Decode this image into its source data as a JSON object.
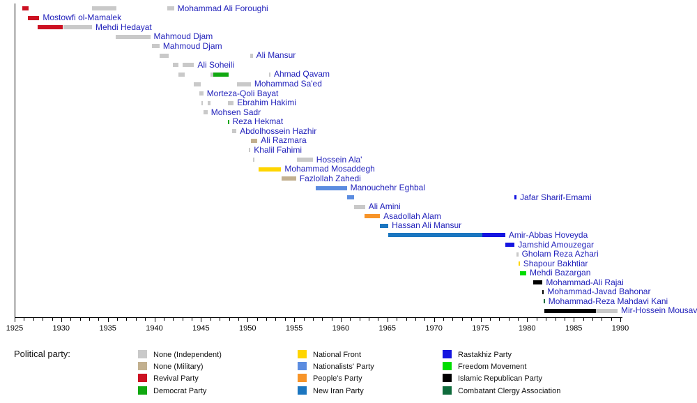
{
  "chart_data": {
    "type": "timeline-gantt",
    "title": "",
    "xlabel": "",
    "xlim": [
      1925,
      1990
    ],
    "tick_years": [
      1925,
      1930,
      1935,
      1940,
      1945,
      1950,
      1955,
      1960,
      1965,
      1970,
      1975,
      1980,
      1985,
      1990
    ],
    "minor_tick_step": 1,
    "grid": false,
    "legend_position": "bottom",
    "parties": {
      "ind": {
        "label": "None (Independent)",
        "color": "#c9c9c9"
      },
      "mil": {
        "label": "None (Military)",
        "color": "#c2b08f"
      },
      "revival": {
        "label": "Revival Party",
        "color": "#cc1122"
      },
      "democrat": {
        "label": "Democrat Party",
        "color": "#10a810"
      },
      "nf": {
        "label": "National Front",
        "color": "#ffd500"
      },
      "nationalists": {
        "label": "Nationalists' Party",
        "color": "#5b8ce0"
      },
      "people": {
        "label": "People's Party",
        "color": "#f79428"
      },
      "newiran": {
        "label": "New Iran Party",
        "color": "#1b76c0"
      },
      "rastakhiz": {
        "label": "Rastakhiz Party",
        "color": "#1515e0"
      },
      "freedom": {
        "label": "Freedom Movement",
        "color": "#00dd00"
      },
      "irp": {
        "label": "Islamic Republican Party",
        "color": "#000000"
      },
      "cca": {
        "label": "Combatant Clergy Association",
        "color": "#0f6b3c"
      }
    },
    "ministers": [
      {
        "name": "Mohammad Ali Foroughi",
        "segments": [
          [
            1925.85,
            1926.5,
            "revival"
          ],
          [
            1933.3,
            1935.95,
            "ind"
          ],
          [
            1941.4,
            1942.1,
            "ind"
          ]
        ]
      },
      {
        "name": "Mostowfi ol-Mamalek",
        "segments": [
          [
            1926.4,
            1927.65,
            "revival"
          ]
        ]
      },
      {
        "name": "Mehdi Hedayat",
        "segments": [
          [
            1927.5,
            1930.2,
            "revival"
          ],
          [
            1930.2,
            1933.3,
            "ind"
          ]
        ]
      },
      {
        "name": "Mahmoud Djam",
        "segments": [
          [
            1935.85,
            1939.55,
            "ind"
          ]
        ]
      },
      {
        "name": "Mahmoud Djam",
        "segments": [
          [
            1939.75,
            1940.55,
            "ind"
          ]
        ]
      },
      {
        "name": "Ali Mansur",
        "segments": [
          [
            1940.55,
            1941.5,
            "ind"
          ],
          [
            1950.25,
            1950.55,
            "ind"
          ]
        ]
      },
      {
        "name": "Ali Soheili",
        "segments": [
          [
            1942.0,
            1942.6,
            "ind"
          ],
          [
            1943.05,
            1944.25,
            "ind"
          ]
        ]
      },
      {
        "name": "Ahmad Qavam",
        "segments": [
          [
            1942.6,
            1943.25,
            "ind"
          ],
          [
            1946.05,
            1946.3,
            "ind"
          ],
          [
            1946.3,
            1948.0,
            "democrat"
          ],
          [
            1952.3,
            1952.45,
            "ind"
          ]
        ]
      },
      {
        "name": "Mohammad Sa'ed",
        "segments": [
          [
            1944.2,
            1944.95,
            "ind"
          ],
          [
            1948.85,
            1950.35,
            "ind"
          ]
        ]
      },
      {
        "name": "Morteza-Qoli Bayat",
        "segments": [
          [
            1944.8,
            1945.25,
            "ind"
          ]
        ]
      },
      {
        "name": "Ebrahim Hakimi",
        "segments": [
          [
            1945.05,
            1945.2,
            "ind"
          ],
          [
            1945.7,
            1946.05,
            "ind"
          ],
          [
            1947.9,
            1948.5,
            "ind"
          ]
        ]
      },
      {
        "name": "Mohsen Sadr",
        "segments": [
          [
            1945.3,
            1945.7,
            "ind"
          ]
        ]
      },
      {
        "name": "Reza Hekmat",
        "segments": [
          [
            1947.85,
            1948.0,
            "democrat"
          ]
        ]
      },
      {
        "name": "Abdolhossein Hazhir",
        "segments": [
          [
            1948.3,
            1948.8,
            "ind"
          ]
        ]
      },
      {
        "name": "Ali Razmara",
        "segments": [
          [
            1950.35,
            1951.05,
            "mil"
          ]
        ]
      },
      {
        "name": "Khalil Fahimi",
        "segments": [
          [
            1950.15,
            1950.3,
            "ind"
          ]
        ]
      },
      {
        "name": "Hossein Ala'",
        "segments": [
          [
            1950.6,
            1950.75,
            "ind"
          ],
          [
            1955.3,
            1957.0,
            "ind"
          ]
        ]
      },
      {
        "name": "Mohammad Mosaddegh",
        "segments": [
          [
            1951.15,
            1953.6,
            "nf"
          ]
        ]
      },
      {
        "name": "Fazlollah Zahedi",
        "segments": [
          [
            1953.65,
            1955.2,
            "mil"
          ]
        ]
      },
      {
        "name": "Manouchehr Eghbal",
        "segments": [
          [
            1957.3,
            1960.65,
            "nationalists"
          ]
        ]
      },
      {
        "name": "Jafar Sharif-Emami",
        "segments": [
          [
            1960.7,
            1961.4,
            "nationalists"
          ],
          [
            1978.65,
            1978.85,
            "rastakhiz"
          ]
        ]
      },
      {
        "name": "Ali Amini",
        "segments": [
          [
            1961.45,
            1962.6,
            "ind"
          ]
        ]
      },
      {
        "name": "Asadollah Alam",
        "segments": [
          [
            1962.55,
            1964.2,
            "people"
          ]
        ]
      },
      {
        "name": "Hassan Ali Mansur",
        "segments": [
          [
            1964.2,
            1965.1,
            "newiran"
          ]
        ]
      },
      {
        "name": "Amir-Abbas Hoveyda",
        "segments": [
          [
            1965.1,
            1975.2,
            "newiran"
          ],
          [
            1975.2,
            1977.65,
            "rastakhiz"
          ]
        ]
      },
      {
        "name": "Jamshid Amouzegar",
        "segments": [
          [
            1977.65,
            1978.65,
            "rastakhiz"
          ]
        ]
      },
      {
        "name": "Gholam Reza Azhari",
        "segments": [
          [
            1978.85,
            1979.05,
            "ind"
          ]
        ]
      },
      {
        "name": "Shapour Bakhtiar",
        "segments": [
          [
            1979.05,
            1979.2,
            "nf"
          ]
        ]
      },
      {
        "name": "Mehdi Bazargan",
        "segments": [
          [
            1979.2,
            1979.9,
            "freedom"
          ]
        ]
      },
      {
        "name": "Mohammad-Ali Rajai",
        "segments": [
          [
            1980.65,
            1981.65,
            "irp"
          ]
        ]
      },
      {
        "name": "Mohammad-Javad Bahonar",
        "segments": [
          [
            1981.65,
            1981.8,
            "irp"
          ]
        ]
      },
      {
        "name": "Mohammad-Reza Mahdavi Kani",
        "segments": [
          [
            1981.75,
            1981.9,
            "cca"
          ]
        ]
      },
      {
        "name": "Mir-Hossein Mousavi",
        "segments": [
          [
            1981.85,
            1987.4,
            "irp"
          ],
          [
            1987.4,
            1989.7,
            "ind"
          ]
        ]
      }
    ]
  },
  "legend": {
    "title": "Political party:",
    "columns": [
      [
        "ind",
        "mil",
        "revival",
        "democrat"
      ],
      [
        "nf",
        "nationalists",
        "people",
        "newiran"
      ],
      [
        "rastakhiz",
        "freedom",
        "irp",
        "cca"
      ]
    ]
  }
}
